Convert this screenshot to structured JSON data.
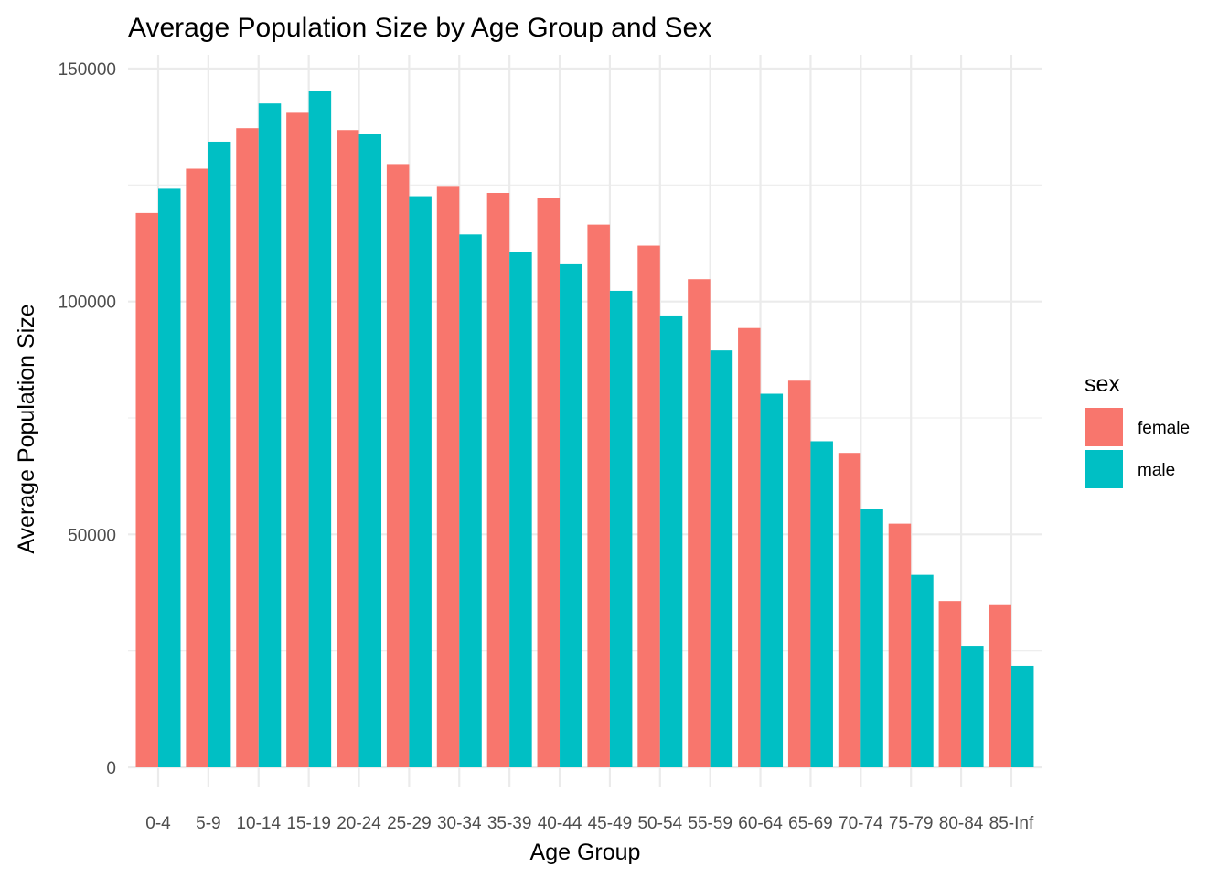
{
  "chart_data": {
    "type": "bar",
    "title": "Average Population Size by Age Group and Sex",
    "xlabel": "Age Group",
    "ylabel": "Average Population Size",
    "categories": [
      "0-4",
      "5-9",
      "10-14",
      "15-19",
      "20-24",
      "25-29",
      "30-34",
      "35-39",
      "40-44",
      "45-49",
      "50-54",
      "55-59",
      "60-64",
      "65-69",
      "70-74",
      "75-79",
      "80-84",
      "85-Inf"
    ],
    "series": [
      {
        "name": "female",
        "color": "#F8766D",
        "values": [
          119000,
          128500,
          137200,
          140500,
          136800,
          129500,
          124800,
          123300,
          122300,
          116500,
          112000,
          104800,
          94300,
          83000,
          67500,
          52300,
          35700,
          35000
        ]
      },
      {
        "name": "male",
        "color": "#00BFC4",
        "values": [
          124200,
          134300,
          142500,
          145100,
          135900,
          122600,
          114400,
          110600,
          108000,
          102300,
          97000,
          89500,
          80200,
          70000,
          55500,
          41300,
          26100,
          21800
        ]
      }
    ],
    "yticks": [
      0,
      50000,
      100000,
      150000
    ],
    "ytick_labels": [
      "0",
      "50000",
      "100000",
      "150000"
    ],
    "ylim": [
      0,
      150000
    ],
    "grid": true,
    "legend": {
      "title": "sex",
      "position": "right"
    }
  }
}
